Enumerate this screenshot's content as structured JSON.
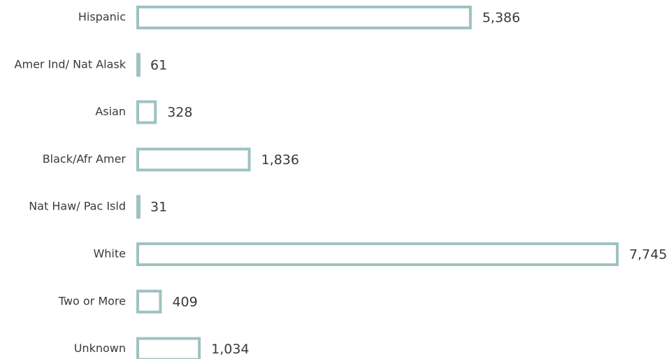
{
  "chart_data": {
    "type": "bar",
    "orientation": "horizontal",
    "categories": [
      "Hispanic",
      "Amer Ind/ Nat Alask",
      "Asian",
      "Black/Afr Amer",
      "Nat Haw/ Pac Isld",
      "White",
      "Two or More",
      "Unknown"
    ],
    "values": [
      5386,
      61,
      328,
      1836,
      31,
      7745,
      409,
      1034
    ],
    "value_labels": [
      "5,386",
      "61",
      "328",
      "1,836",
      "31",
      "7,745",
      "409",
      "1,034"
    ],
    "title": "",
    "xlabel": "",
    "ylabel": "",
    "xlim": [
      0,
      7745
    ],
    "grid": false,
    "legend": "none",
    "bar_style": "outline",
    "colors": {
      "bar_stroke": "#9fc2c0",
      "bar_fill": "#ffffff",
      "label_text": "#3a3a3a"
    }
  }
}
